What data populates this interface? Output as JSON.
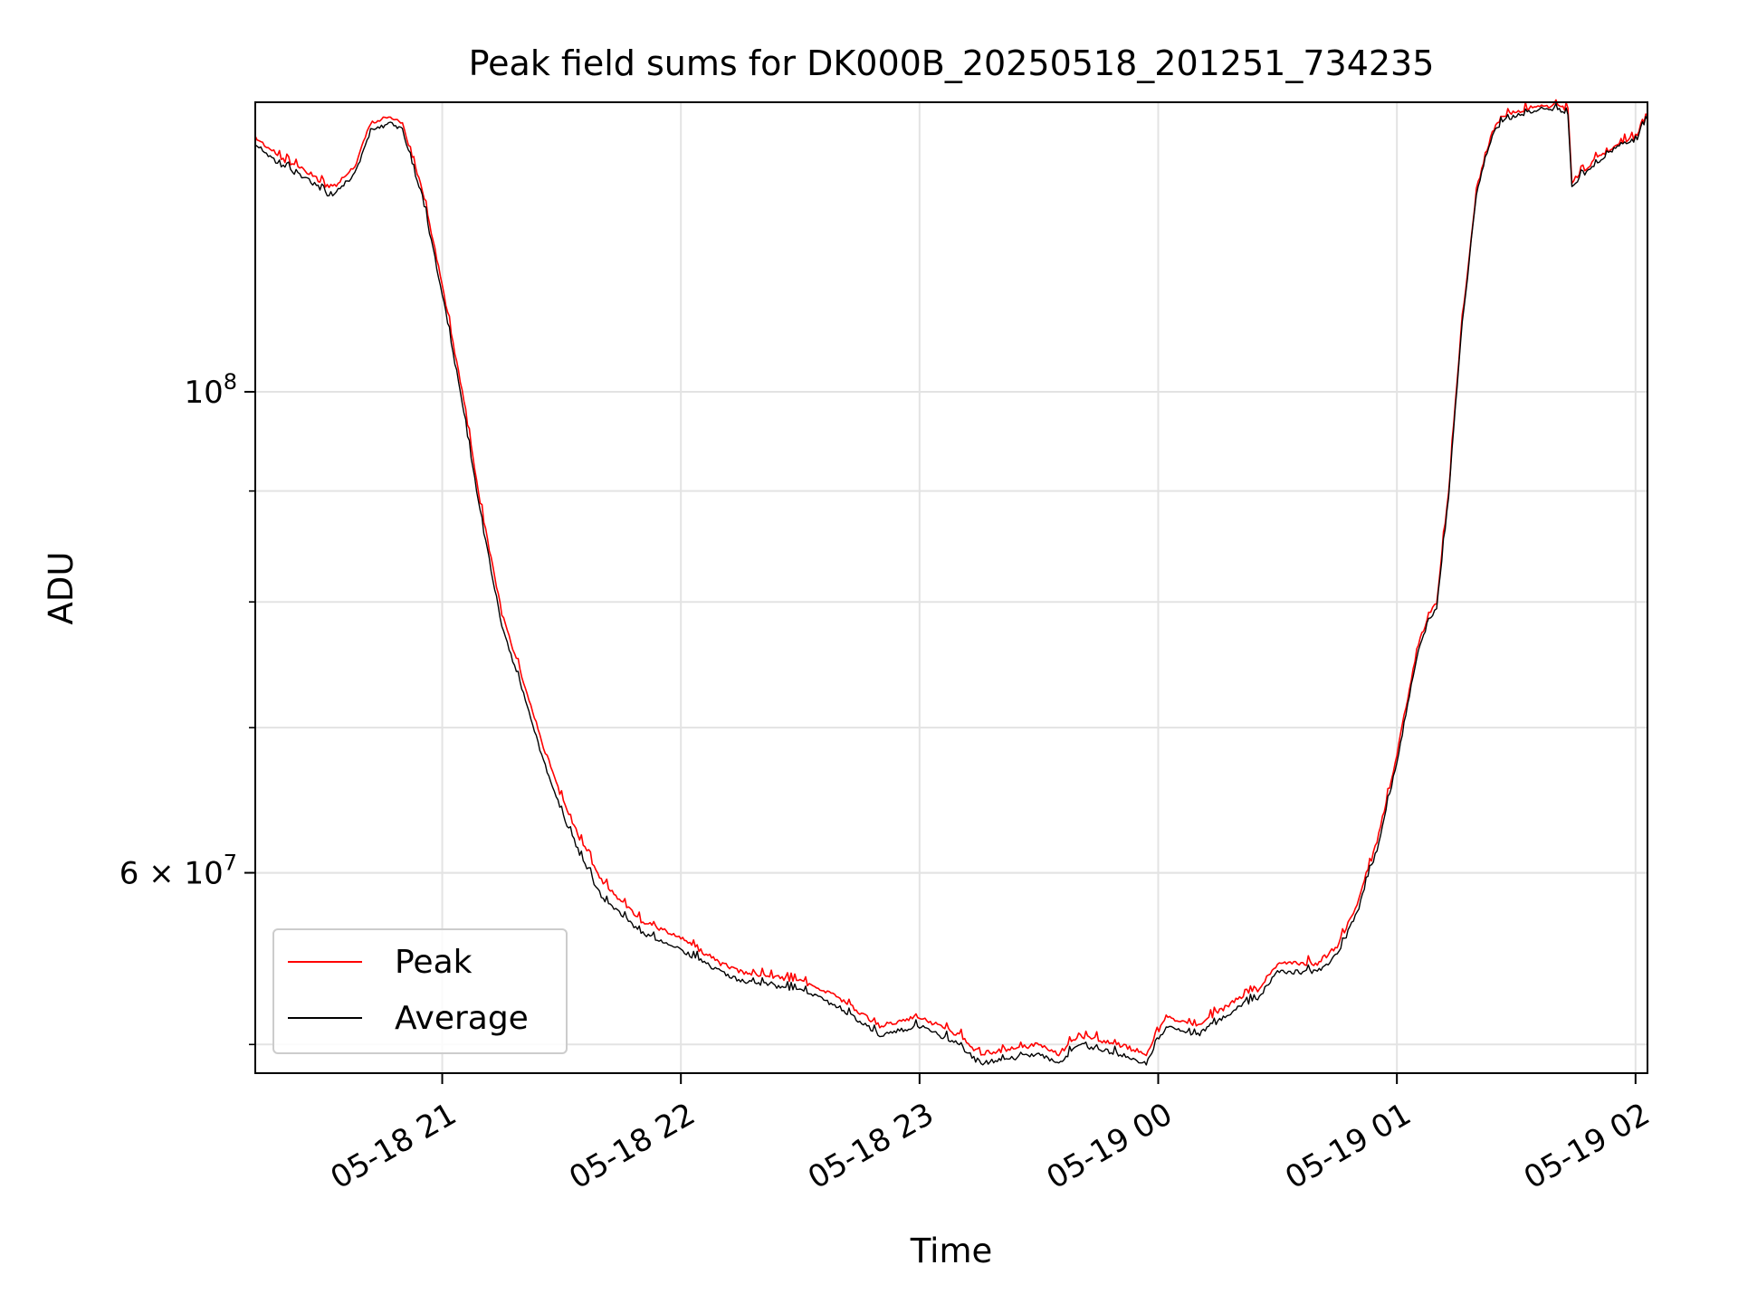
{
  "chart_data": {
    "type": "line",
    "title": "Peak field sums for DK000B_20250518_201251_734235",
    "xlabel": "Time",
    "ylabel": "ADU",
    "yscale": "log",
    "grid": true,
    "legend": "lower-left",
    "xlim": [
      "05-18 20:13",
      "05-19 02:03"
    ],
    "ylim": [
      48500000,
      136000000
    ],
    "x_ticks": [
      {
        "at": "05-18 21:00",
        "label": "05-18 21"
      },
      {
        "at": "05-18 22:00",
        "label": "05-18 22"
      },
      {
        "at": "05-18 23:00",
        "label": "05-18 23"
      },
      {
        "at": "05-19 00:00",
        "label": "05-19 00"
      },
      {
        "at": "05-19 01:00",
        "label": "05-19 01"
      },
      {
        "at": "05-19 02:00",
        "label": "05-19 02"
      }
    ],
    "y_major_ticks": [
      {
        "value": 100000000,
        "label": "10",
        "sup": "8"
      },
      {
        "value": 60000000,
        "label": "6 × 10",
        "sup": "7"
      }
    ],
    "y_minor_ticks": [
      50000000,
      60000000,
      70000000,
      80000000,
      90000000
    ],
    "series": [
      {
        "name": "Peak",
        "color": "#ff0000",
        "x": [
          "05-18 20:13",
          "05-18 20:20",
          "05-18 20:27",
          "05-18 20:32",
          "05-18 20:38",
          "05-18 20:42",
          "05-18 20:47",
          "05-18 20:50",
          "05-18 20:52",
          "05-18 20:55",
          "05-18 21:00",
          "05-18 21:05",
          "05-18 21:10",
          "05-18 21:15",
          "05-18 21:20",
          "05-18 21:25",
          "05-18 21:30",
          "05-18 21:35",
          "05-18 21:40",
          "05-18 21:50",
          "05-18 22:00",
          "05-18 22:10",
          "05-18 22:15",
          "05-18 22:30",
          "05-18 22:40",
          "05-18 22:50",
          "05-18 23:00",
          "05-18 23:10",
          "05-18 23:15",
          "05-18 23:30",
          "05-18 23:35",
          "05-18 23:40",
          "05-18 23:50",
          "05-18 23:57",
          "05-19 00:02",
          "05-19 00:10",
          "05-19 00:20",
          "05-19 00:25",
          "05-19 00:30",
          "05-19 00:40",
          "05-19 00:45",
          "05-19 00:50",
          "05-19 00:55",
          "05-19 01:00",
          "05-19 01:05",
          "05-19 01:08",
          "05-19 01:10",
          "05-19 01:13",
          "05-19 01:16",
          "05-19 01:20",
          "05-19 01:24",
          "05-19 01:27",
          "05-19 01:35",
          "05-19 01:40",
          "05-19 01:43",
          "05-19 01:44",
          "05-19 01:50",
          "05-19 01:55",
          "05-19 02:00",
          "05-19 02:03"
        ],
        "y": [
          131000000,
          128000000,
          126000000,
          124000000,
          127000000,
          133000000,
          134000000,
          133000000,
          129000000,
          124000000,
          112000000,
          100000000,
          88000000,
          79000000,
          74000000,
          69000000,
          65000000,
          62000000,
          59500000,
          57000000,
          56000000,
          54500000,
          54000000,
          53500000,
          52500000,
          51000000,
          51500000,
          50500000,
          49500000,
          50000000,
          49500000,
          50500000,
          50000000,
          49500000,
          51500000,
          51000000,
          52500000,
          53000000,
          54500000,
          54500000,
          55500000,
          58000000,
          62000000,
          68000000,
          76000000,
          79000000,
          80000000,
          90000000,
          106000000,
          124000000,
          132000000,
          134000000,
          135500000,
          135500000,
          135000000,
          125000000,
          128000000,
          130000000,
          131000000,
          134000000
        ]
      },
      {
        "name": "Average",
        "color": "#000000",
        "x": [
          "05-18 20:13",
          "05-18 20:20",
          "05-18 20:27",
          "05-18 20:32",
          "05-18 20:38",
          "05-18 20:42",
          "05-18 20:47",
          "05-18 20:50",
          "05-18 20:52",
          "05-18 20:55",
          "05-18 21:00",
          "05-18 21:05",
          "05-18 21:10",
          "05-18 21:15",
          "05-18 21:20",
          "05-18 21:25",
          "05-18 21:30",
          "05-18 21:35",
          "05-18 21:40",
          "05-18 21:50",
          "05-18 22:00",
          "05-18 22:10",
          "05-18 22:15",
          "05-18 22:30",
          "05-18 22:40",
          "05-18 22:50",
          "05-18 23:00",
          "05-18 23:10",
          "05-18 23:15",
          "05-18 23:30",
          "05-18 23:35",
          "05-18 23:40",
          "05-18 23:50",
          "05-18 23:57",
          "05-19 00:02",
          "05-19 00:10",
          "05-19 00:20",
          "05-19 00:25",
          "05-19 00:30",
          "05-19 00:40",
          "05-19 00:45",
          "05-19 00:50",
          "05-19 00:55",
          "05-19 01:00",
          "05-19 01:05",
          "05-19 01:08",
          "05-19 01:10",
          "05-19 01:13",
          "05-19 01:16",
          "05-19 01:20",
          "05-19 01:24",
          "05-19 01:27",
          "05-19 01:35",
          "05-19 01:40",
          "05-19 01:43",
          "05-19 01:44",
          "05-19 01:50",
          "05-19 01:55",
          "05-19 02:00",
          "05-19 02:03"
        ],
        "y": [
          130000000,
          127000000,
          125000000,
          123000000,
          126000000,
          132000000,
          133000000,
          132000000,
          128000000,
          123000000,
          111000000,
          99000000,
          87000000,
          78000000,
          73000000,
          68000000,
          64000000,
          61000000,
          58500000,
          56300000,
          55300000,
          54000000,
          53500000,
          53000000,
          52000000,
          50500000,
          51000000,
          50000000,
          49000000,
          49500000,
          49000000,
          50000000,
          49500000,
          49000000,
          51000000,
          50500000,
          52000000,
          52500000,
          54000000,
          54000000,
          55000000,
          57500000,
          61500000,
          67500000,
          75500000,
          78500000,
          79500000,
          89500000,
          105500000,
          123500000,
          131500000,
          133500000,
          135000000,
          135000000,
          134500000,
          124500000,
          127500000,
          129500000,
          130500000,
          133500000
        ]
      }
    ]
  }
}
